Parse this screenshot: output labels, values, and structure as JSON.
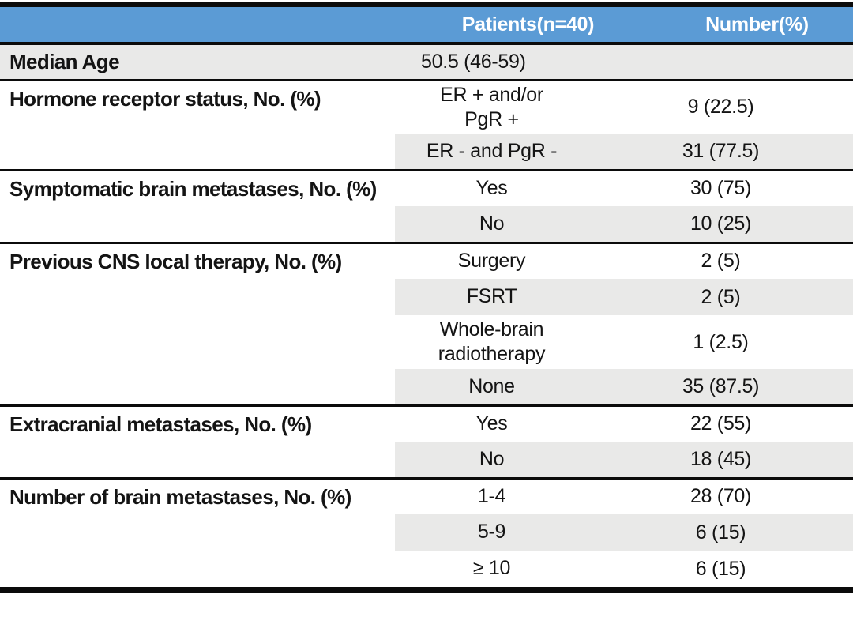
{
  "colors": {
    "header_bg": "#5B9BD5",
    "header_text": "#FFFFFF",
    "row_shade": "#E9E9E8",
    "rule_line": "#0B0B0B",
    "body_text": "#141414"
  },
  "table": {
    "header": {
      "label_col": "",
      "patients_col": "Patients(n=40)",
      "number_col": "Number(%)"
    },
    "sections": [
      {
        "label": "Median Age",
        "rows": [
          {
            "patients": "50.5 (46-59)",
            "number": ""
          }
        ]
      },
      {
        "label": "Hormone receptor status, No. (%)",
        "rows": [
          {
            "patients": "ER + and/or\nPgR +",
            "number": "9 (22.5)"
          },
          {
            "patients": "ER - and PgR -",
            "number": "31 (77.5)"
          }
        ]
      },
      {
        "label": "Symptomatic brain metastases, No. (%)",
        "rows": [
          {
            "patients": "Yes",
            "number": "30 (75)"
          },
          {
            "patients": "No",
            "number": "10 (25)"
          }
        ]
      },
      {
        "label": "Previous CNS local therapy, No. (%)",
        "rows": [
          {
            "patients": "Surgery",
            "number": "2 (5)"
          },
          {
            "patients": "FSRT",
            "number": "2 (5)"
          },
          {
            "patients": "Whole-brain\nradiotherapy",
            "number": "1 (2.5)"
          },
          {
            "patients": "None",
            "number": "35 (87.5)"
          }
        ]
      },
      {
        "label": "Extracranial metastases, No. (%)",
        "rows": [
          {
            "patients": "Yes",
            "number": "22 (55)"
          },
          {
            "patients": "No",
            "number": "18 (45)"
          }
        ]
      },
      {
        "label": "Number of brain metastases, No. (%)",
        "rows": [
          {
            "patients": "1-4",
            "number": "28 (70)"
          },
          {
            "patients": "5-9",
            "number": "6 (15)"
          },
          {
            "patients": "≥ 10",
            "number": "6 (15)"
          }
        ]
      }
    ]
  }
}
